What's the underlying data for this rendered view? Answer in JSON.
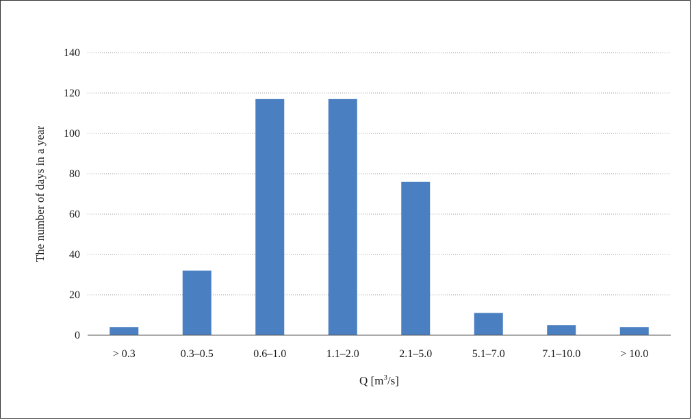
{
  "chart_data": {
    "type": "bar",
    "categories": [
      "> 0.3",
      "0.3–0.5",
      "0.6–1.0",
      "1.1–2.0",
      "2.1–5.0",
      "5.1–7.0",
      "7.1–10.0",
      "> 10.0"
    ],
    "values": [
      4,
      32,
      117,
      117,
      76,
      11,
      5,
      4
    ],
    "title": "",
    "xlabel": {
      "prefix": "Q [m",
      "superscript": "3",
      "suffix": "/s]"
    },
    "ylabel": "The number of days in a year",
    "ylim": [
      0,
      140
    ],
    "yticks": [
      0,
      20,
      40,
      60,
      80,
      100,
      120,
      140
    ],
    "grid": true,
    "legend": "none",
    "colors": {
      "bar": "#4a7fc1",
      "grid": "#9a9a9a",
      "axis": "#555555",
      "frame": "#333333"
    }
  }
}
